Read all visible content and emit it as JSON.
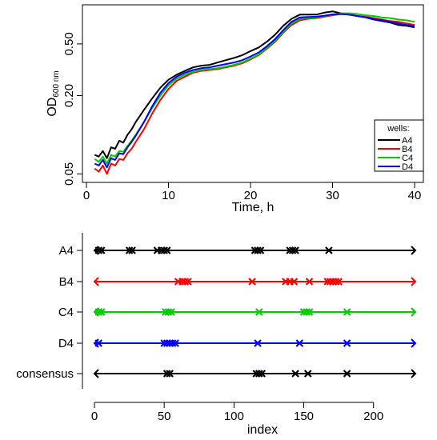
{
  "chart_data": [
    {
      "type": "line",
      "xlabel": "Time, h",
      "ylabel_main": "OD",
      "ylabel_sub": "600 nm",
      "ylog": true,
      "xlim": [
        0,
        40
      ],
      "ylim": [
        0.043,
        1.0
      ],
      "xticks": [
        0,
        10,
        20,
        30,
        40
      ],
      "yticks": [
        0.05,
        0.2,
        0.5
      ],
      "ytick_labels": [
        "0.05",
        "0.20",
        "0.50"
      ],
      "grid": false,
      "legend": {
        "title": "wells:",
        "position": "bottom-right"
      },
      "x": [
        1,
        1.5,
        2,
        2.5,
        3,
        3.5,
        4,
        4.5,
        5,
        5.5,
        6,
        7,
        8,
        9,
        10,
        11,
        12,
        13,
        14,
        15,
        16,
        17,
        18,
        19,
        20,
        21,
        22,
        23,
        24,
        25,
        26,
        27,
        28,
        29,
        30,
        31,
        32,
        33,
        34,
        35,
        36,
        37,
        38,
        39,
        40
      ],
      "series": [
        {
          "name": "A4",
          "color": "#000000",
          "values": [
            0.07,
            0.068,
            0.075,
            0.066,
            0.08,
            0.078,
            0.09,
            0.087,
            0.1,
            0.11,
            0.125,
            0.155,
            0.19,
            0.23,
            0.265,
            0.29,
            0.31,
            0.33,
            0.34,
            0.345,
            0.36,
            0.375,
            0.39,
            0.41,
            0.44,
            0.47,
            0.52,
            0.59,
            0.69,
            0.78,
            0.84,
            0.84,
            0.84,
            0.87,
            0.89,
            0.86,
            0.84,
            0.82,
            0.8,
            0.77,
            0.75,
            0.73,
            0.7,
            0.69,
            0.67
          ]
        },
        {
          "name": "B4",
          "color": "#ff0000",
          "values": [
            0.055,
            0.052,
            0.058,
            0.05,
            0.06,
            0.058,
            0.065,
            0.064,
            0.072,
            0.078,
            0.088,
            0.11,
            0.145,
            0.185,
            0.225,
            0.26,
            0.28,
            0.3,
            0.31,
            0.315,
            0.32,
            0.33,
            0.34,
            0.355,
            0.38,
            0.41,
            0.46,
            0.52,
            0.61,
            0.7,
            0.76,
            0.78,
            0.79,
            0.81,
            0.83,
            0.85,
            0.84,
            0.82,
            0.81,
            0.79,
            0.77,
            0.75,
            0.74,
            0.72,
            0.7
          ]
        },
        {
          "name": "C4",
          "color": "#00cc00",
          "values": [
            0.065,
            0.062,
            0.068,
            0.06,
            0.07,
            0.068,
            0.075,
            0.074,
            0.082,
            0.09,
            0.1,
            0.125,
            0.16,
            0.2,
            0.24,
            0.27,
            0.29,
            0.305,
            0.315,
            0.32,
            0.325,
            0.335,
            0.345,
            0.36,
            0.385,
            0.415,
            0.465,
            0.53,
            0.62,
            0.72,
            0.78,
            0.79,
            0.8,
            0.82,
            0.84,
            0.86,
            0.86,
            0.85,
            0.83,
            0.82,
            0.8,
            0.79,
            0.77,
            0.76,
            0.74
          ]
        },
        {
          "name": "D4",
          "color": "#0000ff",
          "values": [
            0.06,
            0.058,
            0.064,
            0.056,
            0.066,
            0.064,
            0.072,
            0.071,
            0.08,
            0.088,
            0.098,
            0.125,
            0.165,
            0.21,
            0.25,
            0.28,
            0.3,
            0.315,
            0.325,
            0.33,
            0.34,
            0.35,
            0.36,
            0.375,
            0.4,
            0.43,
            0.48,
            0.545,
            0.64,
            0.74,
            0.8,
            0.805,
            0.81,
            0.825,
            0.845,
            0.85,
            0.84,
            0.82,
            0.8,
            0.78,
            0.76,
            0.74,
            0.72,
            0.7,
            0.69
          ]
        }
      ]
    },
    {
      "type": "scatter",
      "xlabel": "index",
      "xlim": [
        0,
        230
      ],
      "xticks": [
        0,
        50,
        100,
        150,
        200
      ],
      "grid": false,
      "rows": [
        {
          "name": "A4",
          "color": "#000000",
          "marks": [
            3,
            5,
            25,
            27,
            45,
            48,
            50,
            52,
            115,
            117,
            119,
            140,
            142,
            144,
            168
          ]
        },
        {
          "name": "B4",
          "color": "#ff0000",
          "marks": [
            60,
            63,
            65,
            67,
            113,
            137,
            140,
            143,
            154,
            167,
            169,
            171,
            173,
            175
          ]
        },
        {
          "name": "C4",
          "color": "#00cc00",
          "marks": [
            3,
            5,
            51,
            53,
            55,
            118,
            150,
            152,
            154,
            181
          ]
        },
        {
          "name": "D4",
          "color": "#0000ff",
          "marks": [
            3,
            50,
            52,
            54,
            56,
            58,
            117,
            147,
            181
          ]
        },
        {
          "name": "consensus",
          "color": "#000000",
          "marks": [
            52,
            54,
            116,
            118,
            120,
            144,
            153,
            181
          ]
        }
      ]
    }
  ]
}
